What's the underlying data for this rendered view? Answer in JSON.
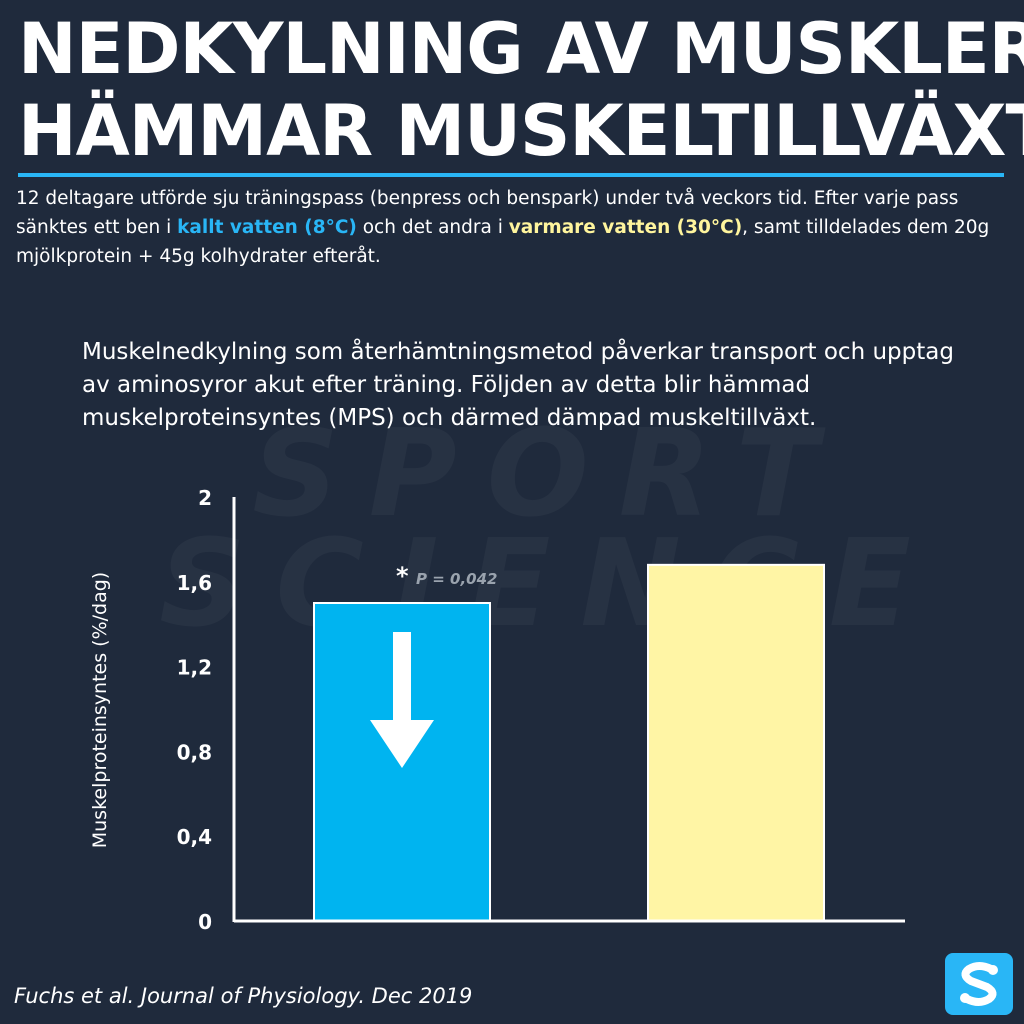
{
  "header": {
    "title_line1": "NEDKYLNING AV MUSKLER",
    "title_line2": "HÄMMAR MUSKELTILLVÄXT"
  },
  "intro": {
    "part1": "12 deltagare utförde sju träningspass (benpress och benspark) under två veckors tid. Efter varje pass sänktes ett ben i ",
    "cold": "kallt vatten (8°C)",
    "part2": " och det andra i ",
    "warm": "varmare vatten (30°C)",
    "part3": ", samt tilldelades dem 20g mjölkprotein + 45g kolhydrater efteråt."
  },
  "summary": "Muskelnedkylning som återhämtningsmetod påverkar transport och upptag av aminosyror akut efter träning. Följden av detta blir hämmad muskelproteinsyntes (MPS) och därmed dämpad muskeltillväxt.",
  "watermark": [
    "SPORT",
    "SCIENCE"
  ],
  "footer": {
    "citation": "Fuchs et al. Journal of Physiology. Dec 2019"
  },
  "colors": {
    "background": "#1f2a3c",
    "cold": "#00b4f0",
    "warm": "#fff5a5",
    "accent": "#29b6f6"
  },
  "chart_data": {
    "type": "bar",
    "categories": [
      "",
      ""
    ],
    "values": [
      1.5,
      1.68
    ],
    "bar_colors": [
      "#00b4f0",
      "#fff5a5"
    ],
    "ylabel": "Muskelproteinsyntes (%/dag)",
    "ylim": [
      0,
      2
    ],
    "yticks": [
      0,
      0.4,
      0.8,
      1.2,
      1.6,
      2
    ],
    "ytick_labels": [
      "0",
      "0,4",
      "0,8",
      "1,2",
      "1,6",
      "2"
    ],
    "annotation": {
      "star": "*",
      "text": "P = 0,042"
    },
    "grid": false
  }
}
